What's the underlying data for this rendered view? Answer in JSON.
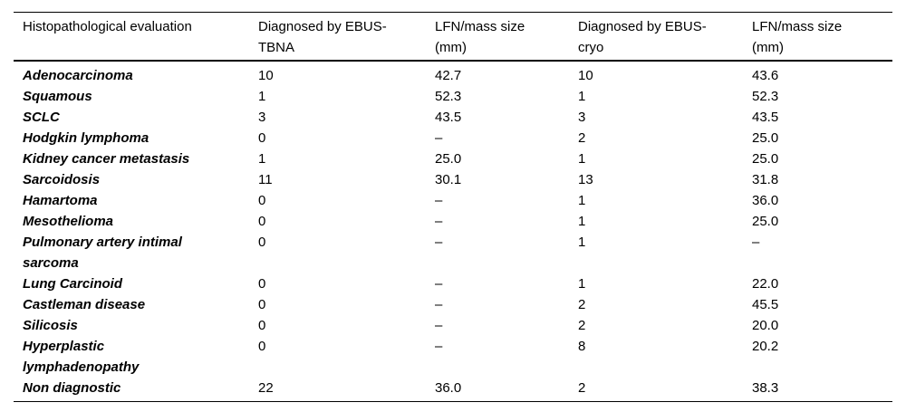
{
  "table": {
    "columns": [
      "Histopathological evaluation",
      "Diagnosed by EBUS-\nTBNA",
      "LFN/mass size\n(mm)",
      "Diagnosed by EBUS-\ncryo",
      "LFN/mass size\n(mm)"
    ],
    "rows": [
      [
        "Adenocarcinoma",
        "10",
        "42.7",
        "10",
        "43.6"
      ],
      [
        "Squamous",
        "1",
        "52.3",
        "1",
        "52.3"
      ],
      [
        "SCLC",
        "3",
        "43.5",
        "3",
        "43.5"
      ],
      [
        "Hodgkin lymphoma",
        "0",
        "–",
        "2",
        "25.0"
      ],
      [
        "Kidney cancer metastasis",
        "1",
        "25.0",
        "1",
        "25.0"
      ],
      [
        "Sarcoidosis",
        "11",
        "30.1",
        "13",
        "31.8"
      ],
      [
        "Hamartoma",
        "0",
        "–",
        "1",
        "36.0"
      ],
      [
        "Mesothelioma",
        "0",
        "–",
        "1",
        "25.0"
      ],
      [
        "Pulmonary artery intimal\nsarcoma",
        "0",
        "–",
        "1",
        "–"
      ],
      [
        "Lung Carcinoid",
        "0",
        "–",
        "1",
        "22.0"
      ],
      [
        "Castleman disease",
        "0",
        "–",
        "2",
        "45.5"
      ],
      [
        "Silicosis",
        "0",
        "–",
        "2",
        "20.0"
      ],
      [
        "Hyperplastic\nlymphadenopathy",
        "0",
        "–",
        "8",
        "20.2"
      ],
      [
        "Non diagnostic",
        "22",
        "36.0",
        "2",
        "38.3"
      ]
    ],
    "colors": {
      "text": "#000000",
      "rule": "#000000",
      "background": "#ffffff"
    }
  }
}
